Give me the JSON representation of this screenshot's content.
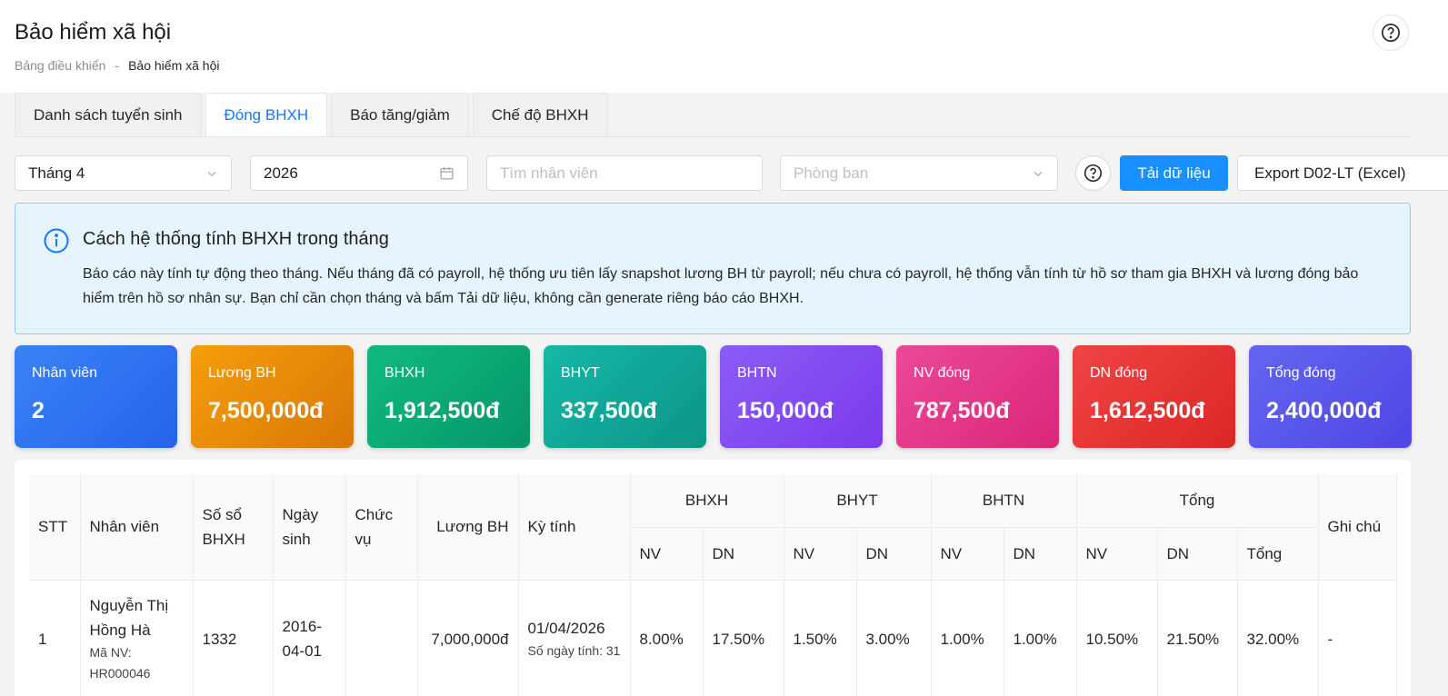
{
  "header": {
    "title": "Bảo hiểm xã hội",
    "breadcrumb": [
      "Bảng điều khiển",
      "-",
      "Bảo hiểm xã hội"
    ]
  },
  "tabs": [
    {
      "label": "Danh sách tuyển sinh",
      "active": false
    },
    {
      "label": "Đóng BHXH",
      "active": true
    },
    {
      "label": "Báo tăng/giảm",
      "active": false
    },
    {
      "label": "Chế độ BHXH",
      "active": false
    }
  ],
  "filters": {
    "month": "Tháng 4",
    "year": "2026",
    "search_placeholder": "Tìm nhân viên",
    "department_placeholder": "Phòng ban",
    "load_button": "Tải dữ liệu",
    "export_button": "Export D02-LT (Excel)"
  },
  "info": {
    "title": "Cách hệ thống tính BHXH trong tháng",
    "text": "Báo cáo này tính tự động theo tháng. Nếu tháng đã có payroll, hệ thống ưu tiên lấy snapshot lương BH từ payroll; nếu chưa có payroll, hệ thống vẫn tính từ hồ sơ tham gia BHXH và lương đóng bảo hiểm trên hồ sơ nhân sự. Bạn chỉ cần chọn tháng và bấm Tải dữ liệu, không cần generate riêng báo cáo BHXH."
  },
  "cards": [
    {
      "label": "Nhân viên",
      "value": "2",
      "color_from": "#3b82f6",
      "color_to": "#2563eb"
    },
    {
      "label": "Lương BH",
      "value": "7,500,000đ",
      "color_from": "#f59e0b",
      "color_to": "#d97706"
    },
    {
      "label": "BHXH",
      "value": "1,912,500đ",
      "color_from": "#10b981",
      "color_to": "#059669"
    },
    {
      "label": "BHYT",
      "value": "337,500đ",
      "color_from": "#14b8a6",
      "color_to": "#0d9488"
    },
    {
      "label": "BHTN",
      "value": "150,000đ",
      "color_from": "#8b5cf6",
      "color_to": "#7c3aed"
    },
    {
      "label": "NV đóng",
      "value": "787,500đ",
      "color_from": "#ec4899",
      "color_to": "#db2777"
    },
    {
      "label": "DN đóng",
      "value": "1,612,500đ",
      "color_from": "#ef4444",
      "color_to": "#dc2626"
    },
    {
      "label": "Tổng đóng",
      "value": "2,400,000đ",
      "color_from": "#6366f1",
      "color_to": "#4f46e5"
    }
  ],
  "table": {
    "headers": {
      "stt": "STT",
      "employee": "Nhân viên",
      "book_no": "Số sổ BHXH",
      "dob": "Ngày sinh",
      "position": "Chức vụ",
      "salary": "Lương BH",
      "period": "Kỳ tính",
      "bhxh": "BHXH",
      "bhyt": "BHYT",
      "bhtn": "BHTN",
      "total": "Tổng",
      "note": "Ghi chú",
      "nv": "NV",
      "dn": "DN",
      "sum": "Tổng"
    },
    "rows": [
      {
        "stt": "1",
        "name": "Nguyễn Thị Hồng Hà",
        "code": "Mã NV: HR000046",
        "book_no": "1332",
        "dob": "2016-04-01",
        "position": "",
        "salary": "7,000,000đ",
        "period_date": "01/04/2026",
        "period_days": "Số ngày tính: 31",
        "bhxh_nv": "8.00%",
        "bhxh_dn": "17.50%",
        "bhyt_nv": "1.50%",
        "bhyt_dn": "3.00%",
        "bhtn_nv": "1.00%",
        "bhtn_dn": "1.00%",
        "total_nv": "10.50%",
        "total_dn": "21.50%",
        "total_sum": "32.00%",
        "note": "-"
      }
    ]
  }
}
